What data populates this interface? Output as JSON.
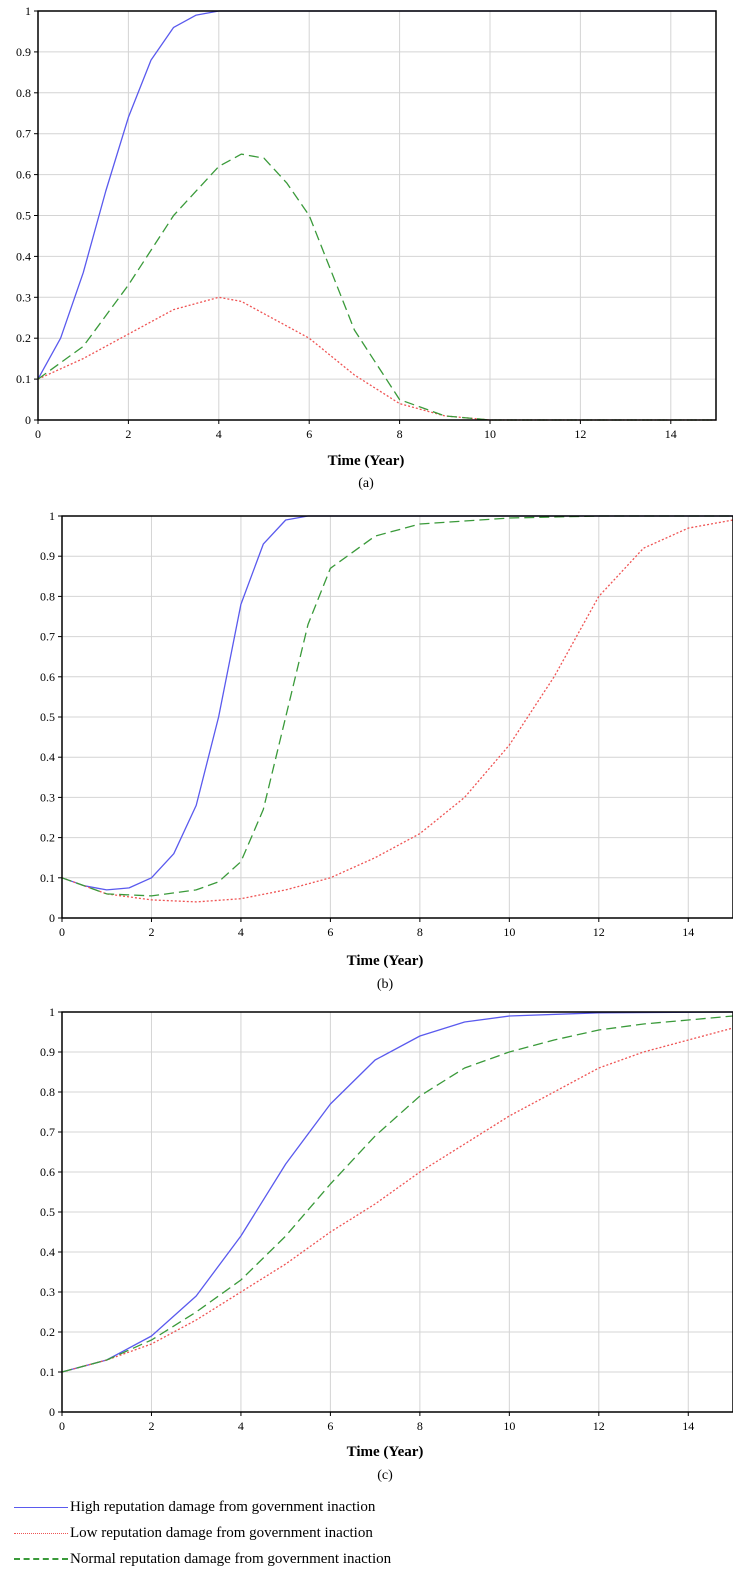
{
  "chart_data": [
    {
      "type": "line",
      "panel_label": "(a)",
      "xlabel": "Time (Year)",
      "ylabel": "",
      "xlim": [
        0,
        15
      ],
      "ylim": [
        0,
        1
      ],
      "xticks": [
        "0",
        "2",
        "4",
        "6",
        "8",
        "10",
        "12",
        "14"
      ],
      "yticks": [
        "0",
        "0.1",
        "0.2",
        "0.3",
        "0.4",
        "0.5",
        "0.6",
        "0.7",
        "0.8",
        "0.9",
        "1"
      ],
      "grid": true,
      "series": [
        {
          "key": "high",
          "color": "#5a5aee",
          "style": "solid",
          "points": [
            [
              0,
              0.1
            ],
            [
              0.5,
              0.2
            ],
            [
              1,
              0.36
            ],
            [
              1.5,
              0.56
            ],
            [
              2,
              0.74
            ],
            [
              2.5,
              0.88
            ],
            [
              3,
              0.96
            ],
            [
              3.5,
              0.99
            ],
            [
              4,
              1.0
            ],
            [
              15,
              1.0
            ]
          ]
        },
        {
          "key": "low",
          "color": "#ef5454",
          "style": "dotted",
          "points": [
            [
              0,
              0.1
            ],
            [
              1,
              0.15
            ],
            [
              2,
              0.21
            ],
            [
              3,
              0.27
            ],
            [
              4,
              0.3
            ],
            [
              4.5,
              0.29
            ],
            [
              5,
              0.26
            ],
            [
              6,
              0.2
            ],
            [
              7,
              0.11
            ],
            [
              8,
              0.04
            ],
            [
              9,
              0.01
            ],
            [
              10,
              0.0
            ],
            [
              15,
              0.0
            ]
          ]
        },
        {
          "key": "normal",
          "color": "#3a9a3a",
          "style": "dashed",
          "points": [
            [
              0,
              0.1
            ],
            [
              1,
              0.18
            ],
            [
              2,
              0.33
            ],
            [
              3,
              0.5
            ],
            [
              4,
              0.62
            ],
            [
              4.5,
              0.65
            ],
            [
              5,
              0.64
            ],
            [
              5.5,
              0.58
            ],
            [
              6,
              0.5
            ],
            [
              7,
              0.22
            ],
            [
              8,
              0.05
            ],
            [
              9,
              0.01
            ],
            [
              10,
              0.0
            ],
            [
              15,
              0.0
            ]
          ]
        }
      ]
    },
    {
      "type": "line",
      "panel_label": "(b)",
      "xlabel": "Time (Year)",
      "ylabel": "",
      "xlim": [
        0,
        15
      ],
      "ylim": [
        0,
        1
      ],
      "xticks": [
        "0",
        "2",
        "4",
        "6",
        "8",
        "10",
        "12",
        "14"
      ],
      "yticks": [
        "0",
        "0.1",
        "0.2",
        "0.3",
        "0.4",
        "0.5",
        "0.6",
        "0.7",
        "0.8",
        "0.9",
        "1"
      ],
      "grid": true,
      "series": [
        {
          "key": "high",
          "color": "#5a5aee",
          "style": "solid",
          "points": [
            [
              0,
              0.1
            ],
            [
              0.5,
              0.08
            ],
            [
              1,
              0.07
            ],
            [
              1.5,
              0.075
            ],
            [
              2,
              0.1
            ],
            [
              2.5,
              0.16
            ],
            [
              3,
              0.28
            ],
            [
              3.5,
              0.5
            ],
            [
              4,
              0.78
            ],
            [
              4.5,
              0.93
            ],
            [
              5,
              0.99
            ],
            [
              5.5,
              1.0
            ],
            [
              15,
              1.0
            ]
          ]
        },
        {
          "key": "low",
          "color": "#ef5454",
          "style": "dotted",
          "points": [
            [
              0,
              0.1
            ],
            [
              1,
              0.06
            ],
            [
              2,
              0.045
            ],
            [
              3,
              0.04
            ],
            [
              4,
              0.048
            ],
            [
              5,
              0.07
            ],
            [
              6,
              0.1
            ],
            [
              7,
              0.15
            ],
            [
              8,
              0.21
            ],
            [
              9,
              0.3
            ],
            [
              10,
              0.43
            ],
            [
              11,
              0.6
            ],
            [
              12,
              0.8
            ],
            [
              13,
              0.92
            ],
            [
              14,
              0.97
            ],
            [
              15,
              0.99
            ]
          ]
        },
        {
          "key": "normal",
          "color": "#3a9a3a",
          "style": "dashed",
          "points": [
            [
              0,
              0.1
            ],
            [
              1,
              0.06
            ],
            [
              2,
              0.055
            ],
            [
              3,
              0.07
            ],
            [
              3.5,
              0.09
            ],
            [
              4,
              0.14
            ],
            [
              4.5,
              0.27
            ],
            [
              5,
              0.5
            ],
            [
              5.5,
              0.73
            ],
            [
              6,
              0.87
            ],
            [
              7,
              0.95
            ],
            [
              8,
              0.98
            ],
            [
              10,
              0.995
            ],
            [
              12,
              1.0
            ],
            [
              15,
              1.0
            ]
          ]
        }
      ]
    },
    {
      "type": "line",
      "panel_label": "(c)",
      "xlabel": "Time (Year)",
      "ylabel": "",
      "xlim": [
        0,
        15
      ],
      "ylim": [
        0,
        1
      ],
      "xticks": [
        "0",
        "2",
        "4",
        "6",
        "8",
        "10",
        "12",
        "14"
      ],
      "yticks": [
        "0",
        "0.1",
        "0.2",
        "0.3",
        "0.4",
        "0.5",
        "0.6",
        "0.7",
        "0.8",
        "0.9",
        "1"
      ],
      "grid": true,
      "series": [
        {
          "key": "high",
          "color": "#5a5aee",
          "style": "solid",
          "points": [
            [
              0,
              0.1
            ],
            [
              1,
              0.13
            ],
            [
              2,
              0.19
            ],
            [
              3,
              0.29
            ],
            [
              4,
              0.44
            ],
            [
              5,
              0.62
            ],
            [
              6,
              0.77
            ],
            [
              7,
              0.88
            ],
            [
              8,
              0.94
            ],
            [
              9,
              0.975
            ],
            [
              10,
              0.99
            ],
            [
              12,
              0.998
            ],
            [
              15,
              1.0
            ]
          ]
        },
        {
          "key": "low",
          "color": "#ef5454",
          "style": "dotted",
          "points": [
            [
              0,
              0.1
            ],
            [
              1,
              0.13
            ],
            [
              2,
              0.17
            ],
            [
              3,
              0.23
            ],
            [
              4,
              0.3
            ],
            [
              5,
              0.37
            ],
            [
              6,
              0.45
            ],
            [
              7,
              0.52
            ],
            [
              8,
              0.6
            ],
            [
              9,
              0.67
            ],
            [
              10,
              0.74
            ],
            [
              11,
              0.8
            ],
            [
              12,
              0.86
            ],
            [
              13,
              0.9
            ],
            [
              14,
              0.93
            ],
            [
              15,
              0.96
            ]
          ]
        },
        {
          "key": "normal",
          "color": "#3a9a3a",
          "style": "dashed",
          "points": [
            [
              0,
              0.1
            ],
            [
              1,
              0.13
            ],
            [
              2,
              0.18
            ],
            [
              3,
              0.25
            ],
            [
              4,
              0.33
            ],
            [
              5,
              0.44
            ],
            [
              6,
              0.57
            ],
            [
              7,
              0.69
            ],
            [
              8,
              0.79
            ],
            [
              9,
              0.86
            ],
            [
              10,
              0.9
            ],
            [
              11,
              0.93
            ],
            [
              12,
              0.955
            ],
            [
              13,
              0.97
            ],
            [
              14,
              0.98
            ],
            [
              15,
              0.99
            ]
          ]
        }
      ]
    }
  ],
  "legend": [
    {
      "key": "high",
      "color": "#5a5aee",
      "style": "solid",
      "label": "High reputation damage from government inaction"
    },
    {
      "key": "low",
      "color": "#ef5454",
      "style": "dotted",
      "label": "Low reputation damage from government inaction"
    },
    {
      "key": "normal",
      "color": "#3a9a3a",
      "style": "dashed",
      "label": "Normal reputation damage from government inaction"
    }
  ]
}
